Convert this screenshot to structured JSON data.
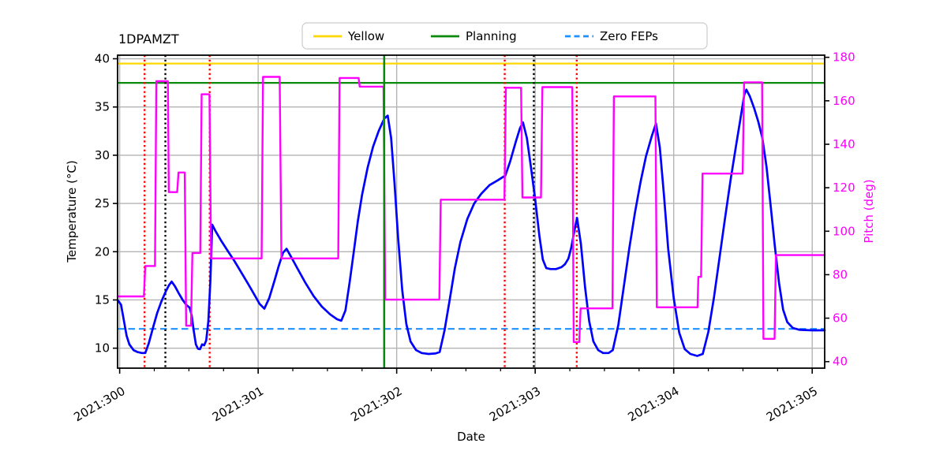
{
  "title": "1DPAMZT",
  "legend": {
    "items": [
      {
        "label": "Yellow",
        "color": "#ffd700",
        "dash": "none"
      },
      {
        "label": "Planning",
        "color": "#0a8a0a",
        "dash": "none"
      },
      {
        "label": "Zero FEPs",
        "color": "#1e90ff",
        "dash": "7 4.5"
      }
    ]
  },
  "axes": {
    "x": {
      "label": "Date"
    },
    "y_left": {
      "label": "Temperature (°C)"
    },
    "y_right": {
      "label": "Pitch (deg)",
      "color": "#ff00ff"
    }
  },
  "chart_data": {
    "type": "line",
    "title": "1DPAMZT",
    "xlabel": "Date",
    "ylabel_left": "Temperature (°C)",
    "ylabel_right": "Pitch (deg)",
    "x_range": [
      299.985,
      305.09
    ],
    "y_left_range": [
      7.93,
      40.37
    ],
    "y_right_range": [
      37.0,
      180.98
    ],
    "x_ticks": [
      {
        "value": 300,
        "label": "2021:300"
      },
      {
        "value": 301,
        "label": "2021:301"
      },
      {
        "value": 302,
        "label": "2021:302"
      },
      {
        "value": 303,
        "label": "2021:303"
      },
      {
        "value": 304,
        "label": "2021:304"
      },
      {
        "value": 305,
        "label": "2021:305"
      }
    ],
    "x_minor_step": 0.25,
    "y_left_ticks": [
      10,
      15,
      20,
      25,
      30,
      35,
      40
    ],
    "y_right_ticks": [
      40,
      60,
      80,
      100,
      120,
      140,
      160,
      180
    ],
    "grid": true,
    "legend_position": "top-center",
    "limit_lines": [
      {
        "name": "yellow-limit",
        "label": "Yellow",
        "value": 39.5,
        "color": "#ffd700",
        "style": "solid"
      },
      {
        "name": "planning-limit",
        "label": "Planning",
        "value": 37.5,
        "color": "#0a8a0a",
        "style": "solid"
      },
      {
        "name": "zero-feps",
        "label": "Zero FEPs",
        "value": 12.0,
        "color": "#1e90ff",
        "style": "dashed"
      }
    ],
    "vlines": [
      {
        "x": 300.18,
        "color": "#ff0000",
        "style": "dotted"
      },
      {
        "x": 300.33,
        "color": "#000000",
        "style": "dotted"
      },
      {
        "x": 300.65,
        "color": "#ff0000",
        "style": "dotted"
      },
      {
        "x": 301.91,
        "color": "#0a8a0a",
        "style": "solid"
      },
      {
        "x": 302.78,
        "color": "#ff0000",
        "style": "dotted"
      },
      {
        "x": 302.99,
        "color": "#000000",
        "style": "dotted"
      },
      {
        "x": 303.3,
        "color": "#ff0000",
        "style": "dotted"
      }
    ],
    "series": [
      {
        "name": "temperature",
        "axis": "left",
        "color": "#0000ff",
        "points": [
          [
            299.985,
            15.0
          ],
          [
            300.01,
            14.5
          ],
          [
            300.03,
            12.9
          ],
          [
            300.05,
            11.3
          ],
          [
            300.07,
            10.4
          ],
          [
            300.1,
            9.8
          ],
          [
            300.13,
            9.6
          ],
          [
            300.16,
            9.5
          ],
          [
            300.185,
            9.5
          ],
          [
            300.21,
            10.5
          ],
          [
            300.24,
            12.1
          ],
          [
            300.27,
            13.6
          ],
          [
            300.3,
            14.8
          ],
          [
            300.33,
            15.8
          ],
          [
            300.355,
            16.5
          ],
          [
            300.375,
            16.9
          ],
          [
            300.4,
            16.4
          ],
          [
            300.43,
            15.6
          ],
          [
            300.455,
            15.0
          ],
          [
            300.48,
            14.5
          ],
          [
            300.505,
            14.2
          ],
          [
            300.52,
            13.4
          ],
          [
            300.535,
            11.8
          ],
          [
            300.55,
            10.4
          ],
          [
            300.565,
            9.95
          ],
          [
            300.58,
            9.9
          ],
          [
            300.595,
            10.4
          ],
          [
            300.61,
            10.3
          ],
          [
            300.625,
            10.8
          ],
          [
            300.64,
            12.8
          ],
          [
            300.655,
            17.0
          ],
          [
            300.668,
            22.8
          ],
          [
            300.69,
            22.2
          ],
          [
            300.73,
            21.2
          ],
          [
            300.78,
            20.1
          ],
          [
            300.83,
            19.0
          ],
          [
            300.88,
            17.8
          ],
          [
            300.93,
            16.6
          ],
          [
            300.97,
            15.6
          ],
          [
            301.01,
            14.6
          ],
          [
            301.045,
            14.1
          ],
          [
            301.08,
            15.2
          ],
          [
            301.12,
            17.1
          ],
          [
            301.15,
            18.6
          ],
          [
            301.18,
            19.9
          ],
          [
            301.205,
            20.3
          ],
          [
            301.24,
            19.4
          ],
          [
            301.29,
            18.1
          ],
          [
            301.34,
            16.8
          ],
          [
            301.4,
            15.4
          ],
          [
            301.46,
            14.3
          ],
          [
            301.52,
            13.5
          ],
          [
            301.57,
            13.0
          ],
          [
            301.6,
            12.85
          ],
          [
            301.63,
            13.9
          ],
          [
            301.66,
            16.8
          ],
          [
            301.69,
            20.0
          ],
          [
            301.72,
            23.2
          ],
          [
            301.75,
            25.9
          ],
          [
            301.79,
            28.7
          ],
          [
            301.83,
            30.9
          ],
          [
            301.87,
            32.5
          ],
          [
            301.91,
            33.8
          ],
          [
            301.935,
            34.1
          ],
          [
            301.96,
            31.8
          ],
          [
            301.985,
            27.0
          ],
          [
            302.01,
            21.5
          ],
          [
            302.04,
            16.0
          ],
          [
            302.07,
            12.5
          ],
          [
            302.1,
            10.7
          ],
          [
            302.14,
            9.8
          ],
          [
            302.18,
            9.5
          ],
          [
            302.23,
            9.4
          ],
          [
            302.28,
            9.45
          ],
          [
            302.31,
            9.6
          ],
          [
            302.345,
            11.8
          ],
          [
            302.38,
            14.8
          ],
          [
            302.42,
            18.3
          ],
          [
            302.46,
            21.0
          ],
          [
            302.51,
            23.4
          ],
          [
            302.56,
            25.0
          ],
          [
            302.61,
            26.0
          ],
          [
            302.67,
            26.9
          ],
          [
            302.73,
            27.4
          ],
          [
            302.785,
            27.9
          ],
          [
            302.82,
            29.4
          ],
          [
            302.86,
            31.4
          ],
          [
            302.89,
            32.8
          ],
          [
            302.912,
            33.4
          ],
          [
            302.94,
            31.8
          ],
          [
            302.97,
            28.7
          ],
          [
            303.0,
            25.4
          ],
          [
            303.03,
            21.7
          ],
          [
            303.055,
            19.2
          ],
          [
            303.08,
            18.3
          ],
          [
            303.11,
            18.2
          ],
          [
            303.15,
            18.2
          ],
          [
            303.19,
            18.4
          ],
          [
            303.215,
            18.7
          ],
          [
            303.24,
            19.3
          ],
          [
            303.26,
            20.4
          ],
          [
            303.285,
            22.3
          ],
          [
            303.302,
            23.5
          ],
          [
            303.33,
            20.8
          ],
          [
            303.36,
            16.3
          ],
          [
            303.39,
            12.8
          ],
          [
            303.42,
            10.7
          ],
          [
            303.455,
            9.8
          ],
          [
            303.49,
            9.5
          ],
          [
            303.53,
            9.5
          ],
          [
            303.56,
            9.8
          ],
          [
            303.6,
            12.4
          ],
          [
            303.64,
            16.4
          ],
          [
            303.68,
            20.4
          ],
          [
            303.72,
            24.0
          ],
          [
            303.76,
            27.2
          ],
          [
            303.8,
            29.9
          ],
          [
            303.84,
            31.9
          ],
          [
            303.872,
            33.3
          ],
          [
            303.9,
            30.8
          ],
          [
            303.93,
            25.8
          ],
          [
            303.96,
            20.3
          ],
          [
            304.0,
            15.2
          ],
          [
            304.04,
            11.6
          ],
          [
            304.08,
            9.9
          ],
          [
            304.12,
            9.4
          ],
          [
            304.17,
            9.2
          ],
          [
            304.21,
            9.4
          ],
          [
            304.25,
            11.7
          ],
          [
            304.29,
            15.2
          ],
          [
            304.33,
            19.3
          ],
          [
            304.37,
            23.4
          ],
          [
            304.41,
            27.4
          ],
          [
            304.45,
            31.0
          ],
          [
            304.48,
            33.6
          ],
          [
            304.51,
            36.3
          ],
          [
            304.525,
            36.8
          ],
          [
            304.55,
            36.1
          ],
          [
            304.58,
            34.9
          ],
          [
            304.61,
            33.5
          ],
          [
            304.64,
            31.8
          ],
          [
            304.67,
            28.8
          ],
          [
            304.7,
            24.8
          ],
          [
            304.73,
            20.6
          ],
          [
            304.76,
            16.8
          ],
          [
            304.79,
            14.0
          ],
          [
            304.82,
            12.7
          ],
          [
            304.86,
            12.1
          ],
          [
            304.91,
            11.9
          ],
          [
            305.0,
            11.85
          ],
          [
            305.09,
            11.85
          ]
        ]
      },
      {
        "name": "pitch",
        "axis": "right",
        "color": "#ff00ff",
        "segments": [
          [
            299.985,
            300.175,
            70
          ],
          [
            300.185,
            300.255,
            84
          ],
          [
            300.265,
            300.348,
            169
          ],
          [
            300.355,
            300.415,
            118
          ],
          [
            300.425,
            300.47,
            127
          ],
          [
            300.48,
            300.515,
            56.5
          ],
          [
            300.525,
            300.582,
            90
          ],
          [
            300.592,
            300.648,
            163
          ],
          [
            300.66,
            301.025,
            87.5
          ],
          [
            301.035,
            301.155,
            171
          ],
          [
            301.168,
            301.578,
            87.5
          ],
          [
            301.588,
            301.725,
            170.5
          ],
          [
            301.733,
            301.905,
            166.5
          ],
          [
            301.917,
            302.308,
            68.5
          ],
          [
            302.318,
            302.778,
            114.5
          ],
          [
            302.788,
            302.898,
            166
          ],
          [
            302.908,
            303.042,
            115.5
          ],
          [
            303.052,
            303.268,
            166.3
          ],
          [
            303.278,
            303.318,
            49
          ],
          [
            303.328,
            303.558,
            64.5
          ],
          [
            303.568,
            303.868,
            162
          ],
          [
            303.878,
            304.172,
            65
          ],
          [
            304.178,
            304.198,
            79
          ],
          [
            304.208,
            304.498,
            126.5
          ],
          [
            304.508,
            304.638,
            168.5
          ],
          [
            304.648,
            304.728,
            50.5
          ],
          [
            304.738,
            305.09,
            89
          ]
        ]
      }
    ]
  }
}
